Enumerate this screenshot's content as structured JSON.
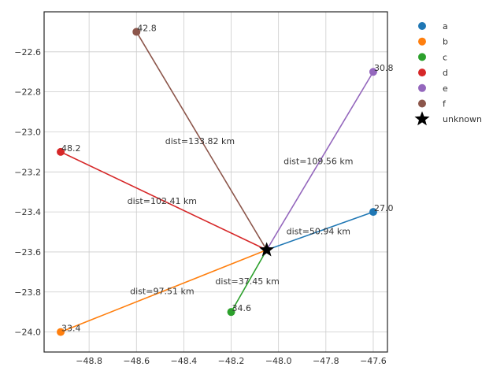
{
  "chart_data": {
    "type": "scatter",
    "title": "",
    "xlabel": "",
    "ylabel": "",
    "xlim": [
      -48.99,
      -47.54
    ],
    "ylim": [
      -24.1,
      -22.4
    ],
    "xticks": [
      -48.8,
      -48.6,
      -48.4,
      -48.2,
      -48.0,
      -47.8,
      -47.6
    ],
    "xtick_labels": [
      "−48.8",
      "−48.6",
      "−48.4",
      "−48.2",
      "−48.0",
      "−47.8",
      "−47.6"
    ],
    "yticks": [
      -22.6,
      -22.8,
      -23.0,
      -23.2,
      -23.4,
      -23.6,
      -23.8,
      -24.0
    ],
    "ytick_labels": [
      "−22.6",
      "−22.8",
      "−23.0",
      "−23.2",
      "−23.4",
      "−23.6",
      "−23.8",
      "−24.0"
    ],
    "grid": true,
    "legend_position": "outside-right",
    "unknown": {
      "name": "unknown",
      "x": -48.05,
      "y": -23.59,
      "marker": "star",
      "color": "#000000"
    },
    "series": [
      {
        "name": "a",
        "x": -47.6,
        "y": -23.4,
        "value_label": "27.0",
        "color": "#1f77b4",
        "dist_label": "dist=50.94 km"
      },
      {
        "name": "b",
        "x": -48.92,
        "y": -24.0,
        "value_label": "33.4",
        "color": "#ff7f0e",
        "dist_label": "dist=97.51 km"
      },
      {
        "name": "c",
        "x": -48.2,
        "y": -23.9,
        "value_label": "34.6",
        "color": "#2ca02c",
        "dist_label": "dist=37.45 km"
      },
      {
        "name": "d",
        "x": -48.92,
        "y": -23.1,
        "value_label": "48.2",
        "color": "#d62728",
        "dist_label": "dist=102.41 km"
      },
      {
        "name": "e",
        "x": -47.6,
        "y": -22.7,
        "value_label": "30.8",
        "color": "#9467bd",
        "dist_label": "dist=109.56 km"
      },
      {
        "name": "f",
        "x": -48.6,
        "y": -22.5,
        "value_label": "42.8",
        "color": "#8c564b",
        "dist_label": "dist=133.82 km"
      }
    ]
  }
}
